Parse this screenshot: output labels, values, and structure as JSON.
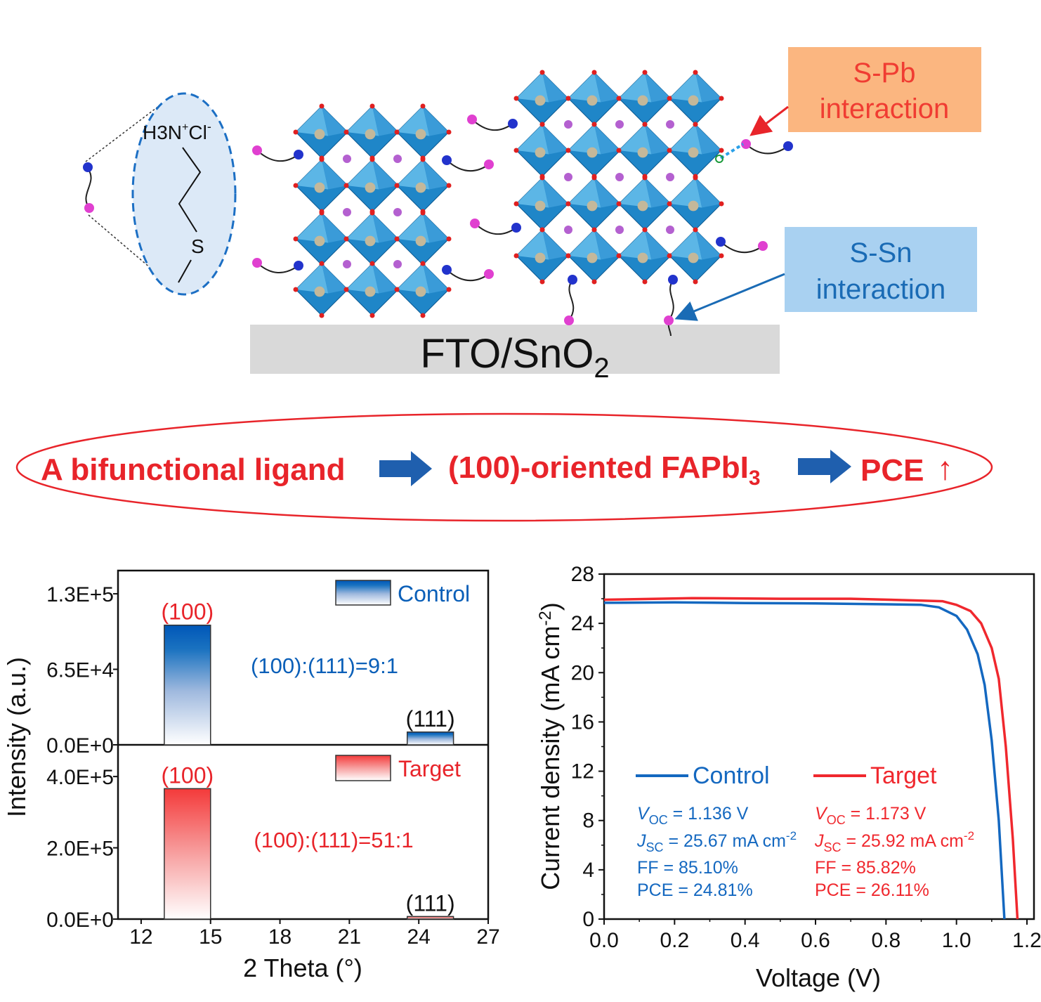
{
  "diagram": {
    "molecule": {
      "amine": "H3N",
      "plus": "+",
      "chloride": "Cl",
      "minus": "-",
      "sulfur": "S"
    },
    "substrate": {
      "main": "FTO/SnO",
      "sub": "2"
    },
    "callouts": [
      {
        "line1": "S-Pb",
        "line2": "interaction",
        "color": "#f03c32",
        "bg": "#fbb680"
      },
      {
        "line1": "S-Sn",
        "line2": "interaction",
        "color": "#1a6bb5",
        "bg": "#a9d1f1"
      }
    ],
    "banner": {
      "part1": "A bifunctional ligand",
      "part2": "(100)-oriented FAPbI",
      "part2_sub": "3",
      "part3": "PCE",
      "up_arrow": "↑",
      "color": "#e8242a",
      "arrow_color": "#1f5fae"
    }
  },
  "chart_data": [
    {
      "type": "bar",
      "title": "",
      "xlabel": "2 Theta (°)",
      "ylabel": "Intensity (a.u.)",
      "xlim": [
        11,
        27
      ],
      "xticks": [
        "12",
        "15",
        "18",
        "21",
        "24",
        "27"
      ],
      "panels": [
        {
          "name": "Control",
          "color": "#0a5fb8",
          "ylim": [
            0,
            150000
          ],
          "yticks": [
            "0.0E+0",
            "6.5E+4",
            "1.3E+5"
          ],
          "ytick_values": [
            0,
            65000,
            130000
          ],
          "bars": [
            {
              "label": "(100)",
              "x0": 13,
              "x1": 15,
              "value": 103000,
              "label_color": "#e8242a"
            },
            {
              "label": "(111)",
              "x0": 23.5,
              "x1": 25.5,
              "value": 11000,
              "label_color": "#111111"
            }
          ],
          "annotation": "(100):(111)=9:1"
        },
        {
          "name": "Target",
          "color": "#f03c3c",
          "ylim": [
            0,
            489000
          ],
          "yticks": [
            "0.0E+0",
            "2.0E+5",
            "4.0E+5"
          ],
          "ytick_values": [
            0,
            200000,
            400000
          ],
          "bars": [
            {
              "label": "(100)",
              "x0": 13,
              "x1": 15,
              "value": 366000,
              "label_color": "#e8242a"
            },
            {
              "label": "(111)",
              "x0": 23.5,
              "x1": 25.5,
              "value": 7200,
              "label_color": "#111111"
            }
          ],
          "annotation": "(100):(111)=51:1"
        }
      ]
    },
    {
      "type": "line",
      "title": "",
      "xlabel": "Voltage (V)",
      "ylabel": "Current density (mA cm",
      "ylabel_sup": "-2",
      "ylabel_end": ")",
      "xlim": [
        0,
        1.22
      ],
      "ylim": [
        0,
        28
      ],
      "xticks": [
        "0.0",
        "0.2",
        "0.4",
        "0.6",
        "0.8",
        "1.0",
        "1.2"
      ],
      "yticks": [
        "0",
        "4",
        "8",
        "12",
        "16",
        "20",
        "24",
        "28"
      ],
      "legend": "center-left",
      "series": [
        {
          "name": "Control",
          "color": "#1468c0",
          "points": [
            [
              0,
              25.67
            ],
            [
              0.2,
              25.7
            ],
            [
              0.4,
              25.65
            ],
            [
              0.6,
              25.62
            ],
            [
              0.8,
              25.55
            ],
            [
              0.9,
              25.5
            ],
            [
              0.95,
              25.3
            ],
            [
              1.0,
              24.6
            ],
            [
              1.03,
              23.5
            ],
            [
              1.06,
              21.5
            ],
            [
              1.08,
              19.0
            ],
            [
              1.1,
              14.5
            ],
            [
              1.12,
              8.0
            ],
            [
              1.136,
              0
            ]
          ],
          "params": {
            "voc_label": "V",
            "voc_sub": "OC",
            "voc": " = 1.136 V",
            "jsc_label": "J",
            "jsc_sub": "SC",
            "jsc": " = 25.67 mA cm",
            "jsc_sup": "-2",
            "ff": "FF = 85.10%",
            "pce": "PCE = 24.81%"
          }
        },
        {
          "name": "Target",
          "color": "#f0282e",
          "points": [
            [
              0,
              25.92
            ],
            [
              0.25,
              26.05
            ],
            [
              0.5,
              26.0
            ],
            [
              0.7,
              26.0
            ],
            [
              0.9,
              25.85
            ],
            [
              0.96,
              25.8
            ],
            [
              1.0,
              25.5
            ],
            [
              1.04,
              25.0
            ],
            [
              1.07,
              24.0
            ],
            [
              1.1,
              22.0
            ],
            [
              1.12,
              19.5
            ],
            [
              1.14,
              14.0
            ],
            [
              1.16,
              6.5
            ],
            [
              1.173,
              0
            ]
          ],
          "params": {
            "voc_label": "V",
            "voc_sub": "OC",
            "voc": " = 1.173 V",
            "jsc_label": "J",
            "jsc_sub": "SC",
            "jsc": " = 25.92 mA cm",
            "jsc_sup": "-2",
            "ff": "FF = 85.82%",
            "pce": "PCE = 26.11%"
          }
        }
      ]
    }
  ]
}
